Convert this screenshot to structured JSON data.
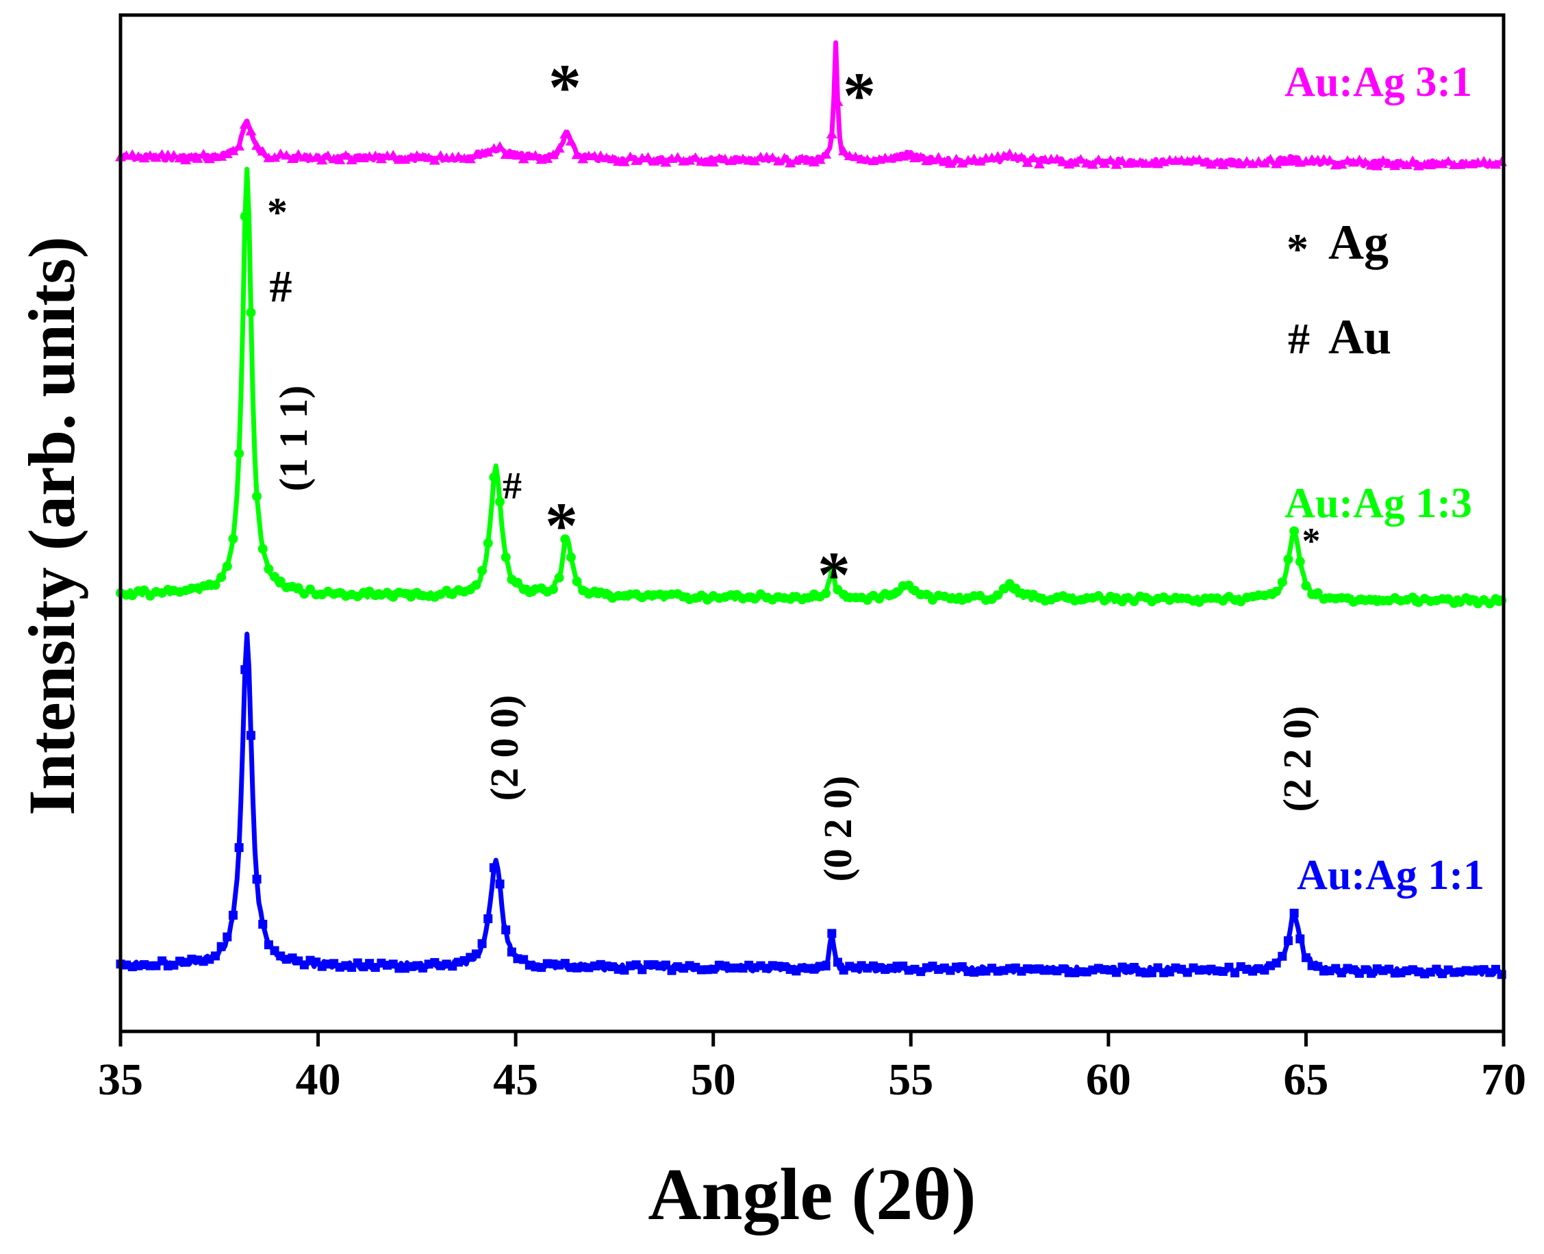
{
  "chart_data": {
    "type": "line",
    "title": "",
    "xlabel": "Angle (2θ)",
    "ylabel": "Intensity (arb. units)",
    "xlim": [
      35,
      70
    ],
    "xticks": [
      "35",
      "40",
      "45",
      "50",
      "55",
      "60",
      "65",
      "70"
    ],
    "y_ticks_shown": false,
    "grid": false,
    "series": [
      {
        "name": "Au:Ag 3:1",
        "color": "#ff00ff",
        "marker": "triangle",
        "baseline": 0.14,
        "peaks": [
          [
            38.2,
            0.036,
            0.16
          ],
          [
            44.5,
            0.01,
            0.4
          ],
          [
            46.3,
            0.026,
            0.13
          ],
          [
            53.1,
            0.116,
            0.05
          ],
          [
            54.9,
            0.007,
            0.25
          ],
          [
            57.5,
            0.006,
            0.2
          ],
          [
            64.6,
            0.004,
            0.3
          ]
        ]
      },
      {
        "name": "Au:Ag 1:3",
        "color": "#00ff00",
        "marker": "circle",
        "baseline": 0.57,
        "peaks": [
          [
            38.2,
            0.418,
            0.14
          ],
          [
            44.5,
            0.128,
            0.16
          ],
          [
            46.3,
            0.059,
            0.14
          ],
          [
            53.0,
            0.03,
            0.07
          ],
          [
            54.9,
            0.012,
            0.2
          ],
          [
            57.5,
            0.012,
            0.18
          ],
          [
            64.7,
            0.067,
            0.17
          ]
        ]
      },
      {
        "name": "Au:Ag 1:1",
        "color": "#0000ff",
        "marker": "square",
        "baseline": 0.935,
        "peaks": [
          [
            38.2,
            0.325,
            0.15
          ],
          [
            44.5,
            0.107,
            0.17
          ],
          [
            53.0,
            0.036,
            0.06
          ],
          [
            64.7,
            0.055,
            0.18
          ]
        ]
      }
    ],
    "legend": [
      {
        "symbol": "*",
        "label": "Ag"
      },
      {
        "symbol": "#",
        "label": "Au"
      }
    ],
    "annotations": {
      "miller": [
        {
          "text": "(1 1 1)",
          "x": 39.0
        },
        {
          "text": "(2 0 0)",
          "x": 45.0
        },
        {
          "text": "(0 2 0)",
          "x": 53.8
        },
        {
          "text": "(2 2 0)",
          "x": 65.0
        }
      ],
      "markers": [
        {
          "text": "*",
          "x": 46.2
        },
        {
          "text": "*",
          "x": 53.4
        },
        {
          "text": "*",
          "x": 39.0
        },
        {
          "text": "#",
          "x": 39.0
        },
        {
          "text": "#",
          "x": 44.9
        },
        {
          "text": "*",
          "x": 46.2
        },
        {
          "text": "*",
          "x": 53.1
        },
        {
          "text": "*",
          "x": 65.1
        }
      ]
    }
  }
}
